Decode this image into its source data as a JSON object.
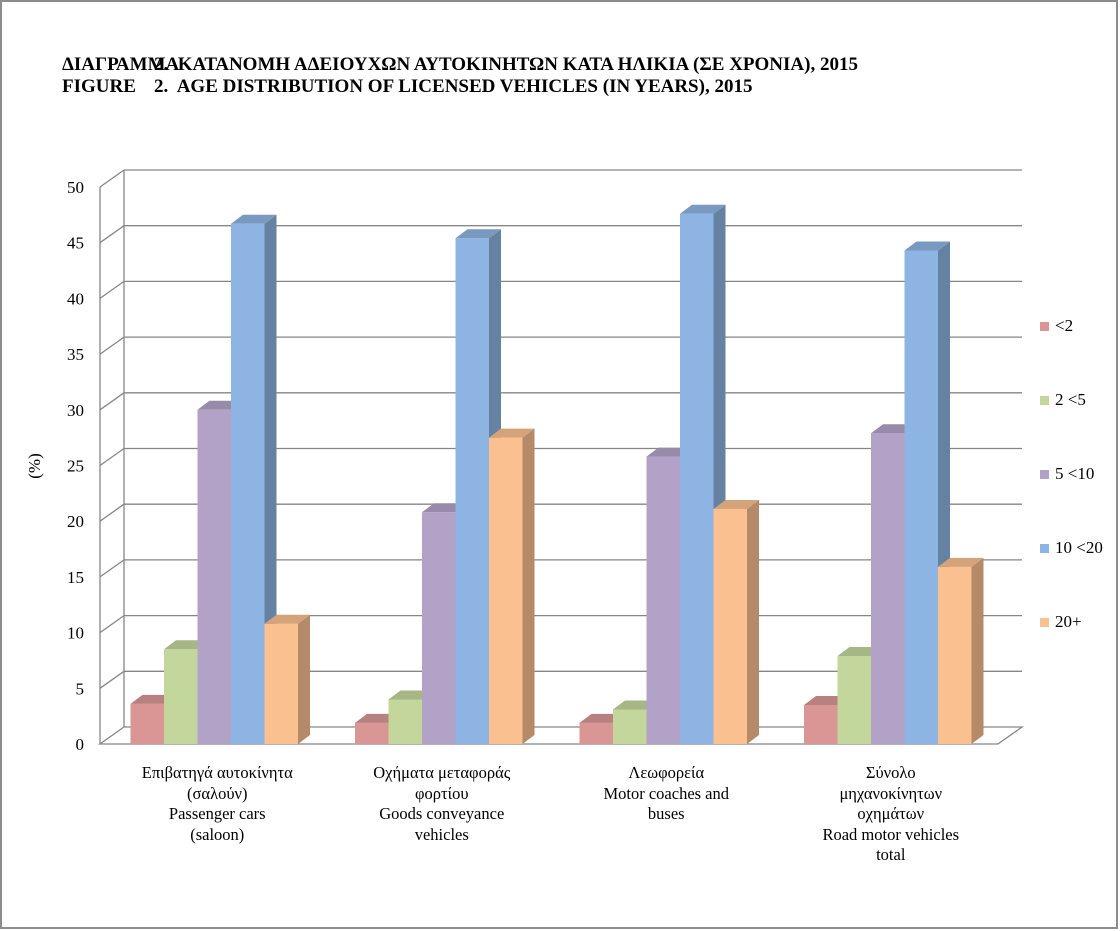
{
  "title": {
    "line1_prefix": "ΔΙΑΓΡΑΜΜΑ",
    "line1_text": "2.  ΚΑΤΑΝΟΜΗ ΑΔΕΙΟΥΧΩΝ ΑΥΤΟΚΙΝΗΤΩΝ ΚΑΤΑ ΗΛΙΚΙΑ (ΣΕ ΧΡΟΝΙΑ), 2015",
    "line2_prefix": "FIGURE",
    "line2_text": "2.  AGE DISTRIBUTION OF LICENSED VEHICLES (IN YEARS), 2015"
  },
  "chart_data": {
    "type": "bar",
    "ylabel": "(%)",
    "ylim": [
      0,
      50
    ],
    "yticks": [
      "0",
      "5",
      "10",
      "15",
      "20",
      "25",
      "30",
      "35",
      "40",
      "45",
      "50"
    ],
    "grid": true,
    "legend_position": "right",
    "categories": [
      [
        "Επιβατηγά αυτοκίνητα",
        "(σαλούν)",
        "Passenger cars",
        "(saloon)"
      ],
      [
        "Οχήματα μεταφοράς",
        "φορτίου",
        "Goods conveyance",
        "vehicles"
      ],
      [
        "Λεωφορεία",
        "Motor coaches and",
        "buses"
      ],
      [
        "Σύνολο",
        "μηχανοκίνητων",
        "οχημάτων",
        "Road motor vehicles",
        "total"
      ]
    ],
    "series": [
      {
        "name": "<2",
        "color": "#d99694",
        "values": [
          3.6,
          1.9,
          1.9,
          3.5
        ]
      },
      {
        "name": "2 <5",
        "color": "#c3d69b",
        "values": [
          8.5,
          4.0,
          3.1,
          7.9
        ]
      },
      {
        "name": "5 <10",
        "color": "#b3a2c7",
        "values": [
          30.0,
          20.8,
          25.8,
          27.9
        ]
      },
      {
        "name": "10 <20",
        "color": "#8eb4e3",
        "values": [
          46.7,
          45.4,
          47.6,
          44.3
        ]
      },
      {
        "name": "20+",
        "color": "#fac090",
        "values": [
          10.8,
          27.5,
          21.1,
          15.9
        ]
      }
    ]
  }
}
